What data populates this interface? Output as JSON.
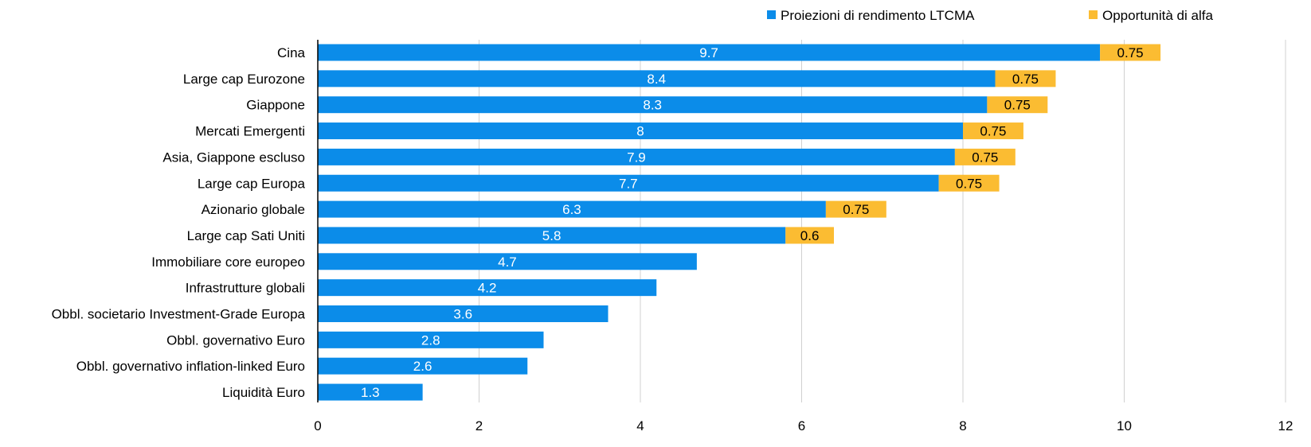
{
  "chart_data": {
    "type": "bar",
    "orientation": "horizontal",
    "stacked": true,
    "categories": [
      "Cina",
      "Large cap Eurozone",
      "Giappone",
      "Mercati Emergenti",
      "Asia, Giappone escluso",
      "Large cap Europa",
      "Azionario globale",
      "Large cap Sati Uniti",
      "Immobiliare core europeo",
      "Infrastrutture globali",
      "Obbl. societario Investment-Grade Europa",
      "Obbl. governativo Euro",
      "Obbl. governativo inflation-linked Euro",
      "Liquidità Euro"
    ],
    "series": [
      {
        "name": "Proiezioni di rendimento LTCMA",
        "color": "#0b8ce9",
        "label_color": "#ffffff",
        "values": [
          9.7,
          8.4,
          8.3,
          8,
          7.9,
          7.7,
          6.3,
          5.8,
          4.7,
          4.2,
          3.6,
          2.8,
          2.6,
          1.3
        ],
        "labels": [
          "9.7",
          "8.4",
          "8.3",
          "8",
          "7.9",
          "7.7",
          "6.3",
          "5.8",
          "4.7",
          "4.2",
          "3.6",
          "2.8",
          "2.6",
          "1.3"
        ]
      },
      {
        "name": "Opportunità di alfa",
        "color": "#fbbc32",
        "label_color": "#000000",
        "values": [
          0.75,
          0.75,
          0.75,
          0.75,
          0.75,
          0.75,
          0.75,
          0.6,
          null,
          null,
          null,
          null,
          null,
          null
        ],
        "labels": [
          "0.75",
          "0.75",
          "0.75",
          "0.75",
          "0.75",
          "0.75",
          "0.75",
          "0.6",
          "",
          "",
          "",
          "",
          "",
          ""
        ]
      }
    ],
    "xlim": [
      0,
      12
    ],
    "xticks": [
      "0",
      "2",
      "4",
      "6",
      "8",
      "10",
      "12"
    ],
    "xtick_values": [
      0,
      2,
      4,
      6,
      8,
      10,
      12
    ],
    "grid": "vertical",
    "legend_position": "top-right",
    "title": "",
    "xlabel": "",
    "ylabel": ""
  }
}
